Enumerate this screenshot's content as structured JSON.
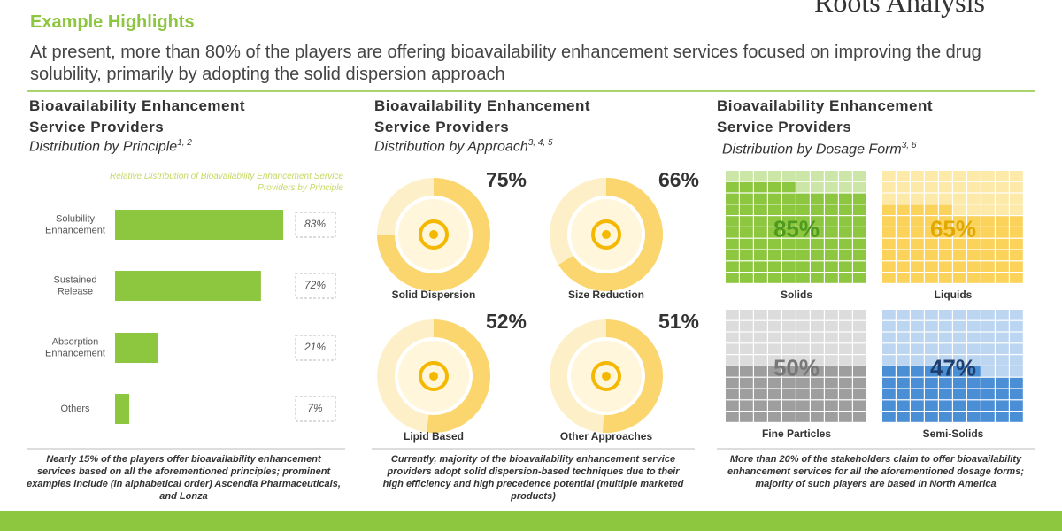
{
  "header": {
    "title": "Example Highlights",
    "subtitle": "At present, more than 80% of the players are offering bioavailability enhancement services focused on improving the drug solubility, primarily by adopting the solid dispersion approach",
    "logo": "Roots Analysis"
  },
  "chart_data": [
    {
      "type": "bar",
      "title": "Bioavailability Enhancement Service Providers",
      "subtitle": "Distribution by Principle",
      "subtitle_refs": "1, 2",
      "annotation": "Relative Distribution of Bioavailability Enhancement Service Providers by Principle",
      "categories": [
        "Solubility Enhancement",
        "Sustained Release",
        "Absorption Enhancement",
        "Others"
      ],
      "values": [
        83,
        72,
        21,
        7
      ],
      "value_labels": [
        "83%",
        "72%",
        "21%",
        "7%"
      ],
      "color": "#8dc63f",
      "note": "Nearly 15% of the players offer bioavailability enhancement services based on all the aforementioned principles; prominent examples include (in alphabetical order) Ascendia Pharmaceuticals, and Lonza"
    },
    {
      "type": "donut",
      "title": "Bioavailability Enhancement Service Providers",
      "subtitle": "Distribution by Approach",
      "subtitle_refs": "3, 4, 5",
      "categories": [
        "Solid Dispersion",
        "Size Reduction",
        "Lipid Based",
        "Other Approaches"
      ],
      "values": [
        75,
        66,
        52,
        51
      ],
      "value_labels": [
        "75%",
        "66%",
        "52%",
        "51%"
      ],
      "color": "#fbd66e",
      "track_color": "#fdf0c8",
      "note": "Currently, majority of the bioavailability enhancement service providers adopt solid dispersion-based techniques due to their high efficiency and high precedence potential (multiple marketed products)"
    },
    {
      "type": "waffle",
      "title": "Bioavailability Enhancement Service Providers",
      "subtitle": "Distribution by Dosage Form",
      "subtitle_refs": "3, 6",
      "categories": [
        "Solids",
        "Liquids",
        "Fine Particles",
        "Semi-Solids"
      ],
      "values": [
        85,
        65,
        50,
        47
      ],
      "value_labels": [
        "85%",
        "65%",
        "50%",
        "47%"
      ],
      "colors": [
        "#8dc63f",
        "#fbd35a",
        "#9e9e9e",
        "#4a8fd6"
      ],
      "light_colors": [
        "#cbe6a6",
        "#fde9a8",
        "#dcdcdc",
        "#bcd6f1"
      ],
      "note": "More than 20% of the stakeholders claim to offer bioavailability enhancement services for all the aforementioned dosage forms; majority of such players are based in North America"
    }
  ]
}
